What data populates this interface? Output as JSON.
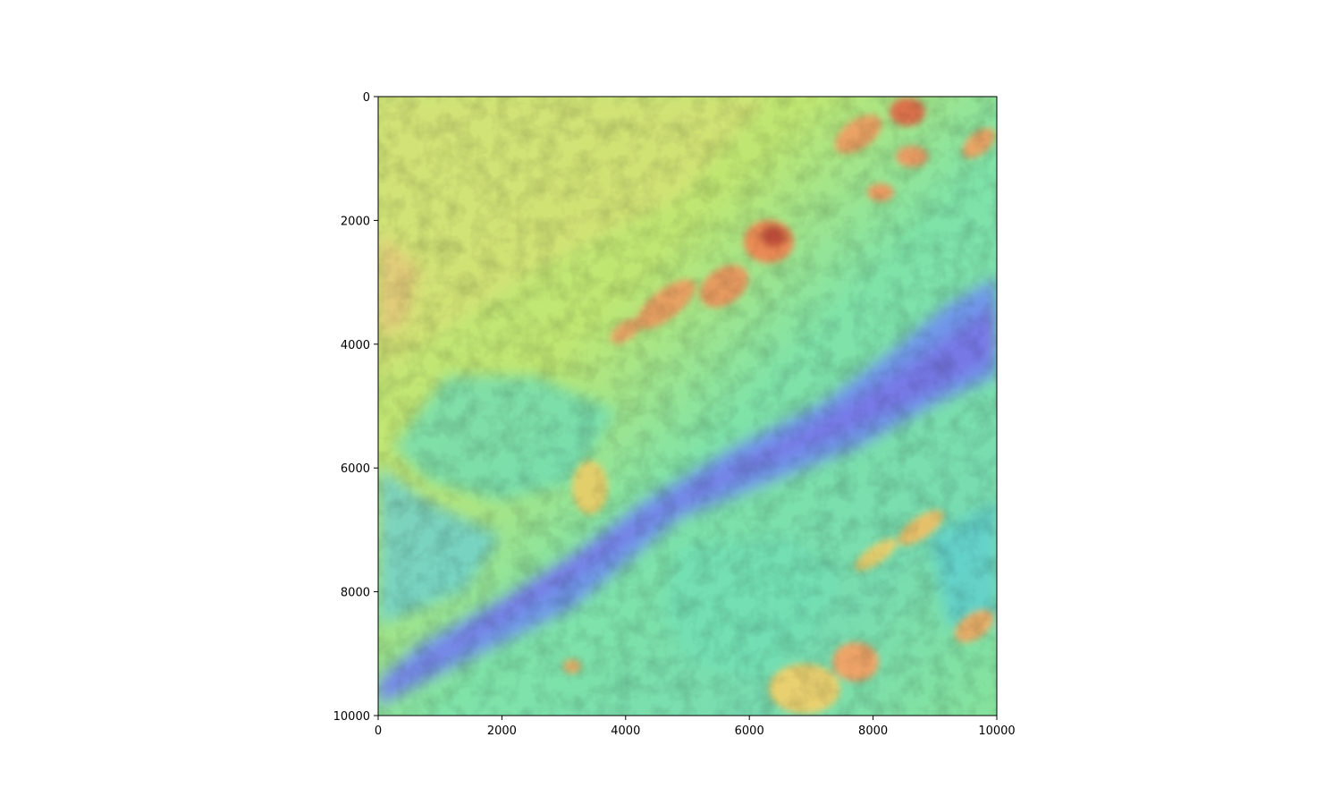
{
  "chart_data": {
    "type": "heatmap",
    "description_kind": "shaded-relief elevation raster",
    "colormap": "rainbow",
    "hillshade": true,
    "x_ticks": [
      "0",
      "2000",
      "4000",
      "6000",
      "8000",
      "10000"
    ],
    "y_ticks": [
      "0",
      "2000",
      "4000",
      "6000",
      "8000",
      "10000"
    ],
    "xlim": [
      0,
      10000
    ],
    "ylim": [
      10000,
      0
    ],
    "y_axis_inverted": true,
    "grid": false,
    "colors": {
      "low": "#7b6cf0",
      "mid_low": "#66d6c6",
      "mid": "#7fe6a0",
      "mid_high": "#cfe874",
      "high": "#f0c060",
      "peak": "#c8482f"
    }
  }
}
